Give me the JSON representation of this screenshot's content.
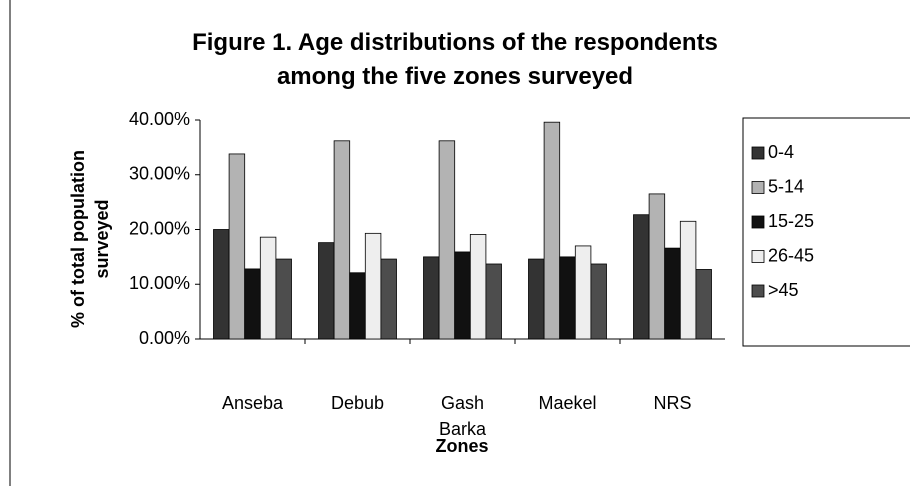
{
  "chart_data": {
    "type": "bar",
    "title": "Figure 1.  Age distributions of the respondents among the five zones surveyed",
    "x_label": "Zones",
    "y_label": "% of total population surveyed",
    "categories": [
      "Anseba",
      "Debub",
      "Gash Barka",
      "Maekel",
      "NRS"
    ],
    "series": [
      {
        "name": "0-4",
        "color": "#333333",
        "values": [
          20.0,
          17.6,
          15.0,
          14.6,
          22.7
        ]
      },
      {
        "name": "5-14",
        "color": "#b3b3b3",
        "values": [
          33.8,
          36.2,
          36.2,
          39.6,
          26.5
        ]
      },
      {
        "name": "15-25",
        "color": "#111111",
        "values": [
          12.8,
          12.1,
          15.9,
          15.0,
          16.6
        ]
      },
      {
        "name": "26-45",
        "color": "#eeeeee",
        "values": [
          18.6,
          19.3,
          19.1,
          17.0,
          21.5
        ]
      },
      {
        "name": ">45",
        "color": "#4d4d4d",
        "values": [
          14.6,
          14.6,
          13.7,
          13.7,
          12.7
        ]
      }
    ],
    "ylim": [
      0,
      40
    ],
    "yticks": [
      {
        "value": 0,
        "label": "0.00%"
      },
      {
        "value": 10,
        "label": "10.00%"
      },
      {
        "value": 20,
        "label": "20.00%"
      },
      {
        "value": 30,
        "label": "30.00%"
      },
      {
        "value": 40,
        "label": "40.00%"
      }
    ],
    "grid": false,
    "legend": "right"
  }
}
